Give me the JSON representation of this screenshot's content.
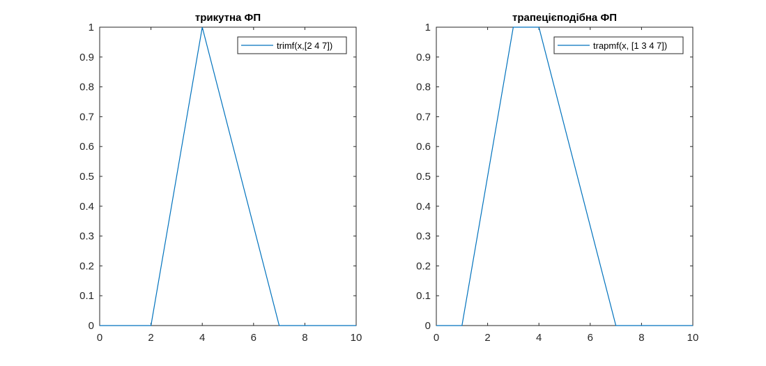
{
  "chart_data": [
    {
      "type": "line",
      "title": "трикутна ФП",
      "xlabel": "",
      "ylabel": "",
      "xlim": [
        0,
        10
      ],
      "ylim": [
        0,
        1
      ],
      "xticks": [
        0,
        2,
        4,
        6,
        8,
        10
      ],
      "yticks": [
        0,
        0.1,
        0.2,
        0.3,
        0.4,
        0.5,
        0.6,
        0.7,
        0.8,
        0.9,
        1
      ],
      "grid": false,
      "legend_position": "top-right",
      "series": [
        {
          "name": "trimf(x,[2 4 7])",
          "color": "#0072BD",
          "x": [
            0,
            2,
            4,
            7,
            10
          ],
          "y": [
            0,
            0,
            1,
            0,
            0
          ]
        }
      ]
    },
    {
      "type": "line",
      "title": "трапецієподібна ФП",
      "xlabel": "",
      "ylabel": "",
      "xlim": [
        0,
        10
      ],
      "ylim": [
        0,
        1
      ],
      "xticks": [
        0,
        2,
        4,
        6,
        8,
        10
      ],
      "yticks": [
        0,
        0.1,
        0.2,
        0.3,
        0.4,
        0.5,
        0.6,
        0.7,
        0.8,
        0.9,
        1
      ],
      "grid": false,
      "legend_position": "top-right",
      "series": [
        {
          "name": "trapmf(x, [1 3 4 7])",
          "color": "#0072BD",
          "x": [
            0,
            1,
            3,
            4,
            7,
            10
          ],
          "y": [
            0,
            0,
            1,
            1,
            0,
            0
          ]
        }
      ]
    }
  ]
}
